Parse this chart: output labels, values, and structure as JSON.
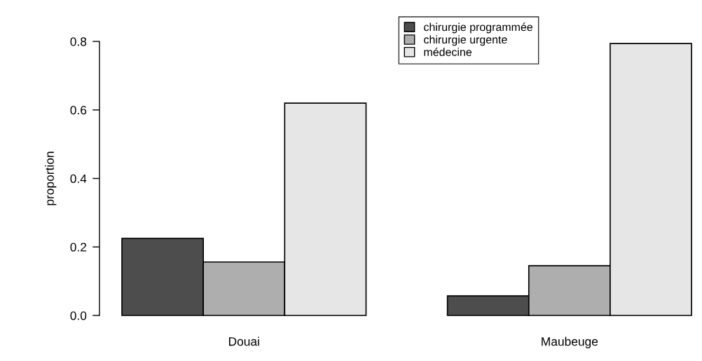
{
  "chart_data": {
    "type": "bar",
    "ylabel": "proportion",
    "categories": [
      "Douai",
      "Maubeuge"
    ],
    "series": [
      {
        "name": "chirurgie programmée",
        "color": "#4d4d4d",
        "values": [
          0.225,
          0.057
        ]
      },
      {
        "name": "chirurgie urgente",
        "color": "#aeaeae",
        "values": [
          0.156,
          0.145
        ]
      },
      {
        "name": "médecine",
        "color": "#e6e6e6",
        "values": [
          0.62,
          0.794
        ]
      }
    ],
    "ylim": [
      0,
      0.8
    ],
    "yticks": [
      {
        "value": 0,
        "label": "0.0"
      },
      {
        "value": 0.2,
        "label": "0.2"
      },
      {
        "value": 0.4,
        "label": "0.4"
      },
      {
        "value": 0.6,
        "label": "0.6"
      },
      {
        "value": 0.8,
        "label": "0.8"
      }
    ],
    "legend": "top",
    "grid": false
  }
}
